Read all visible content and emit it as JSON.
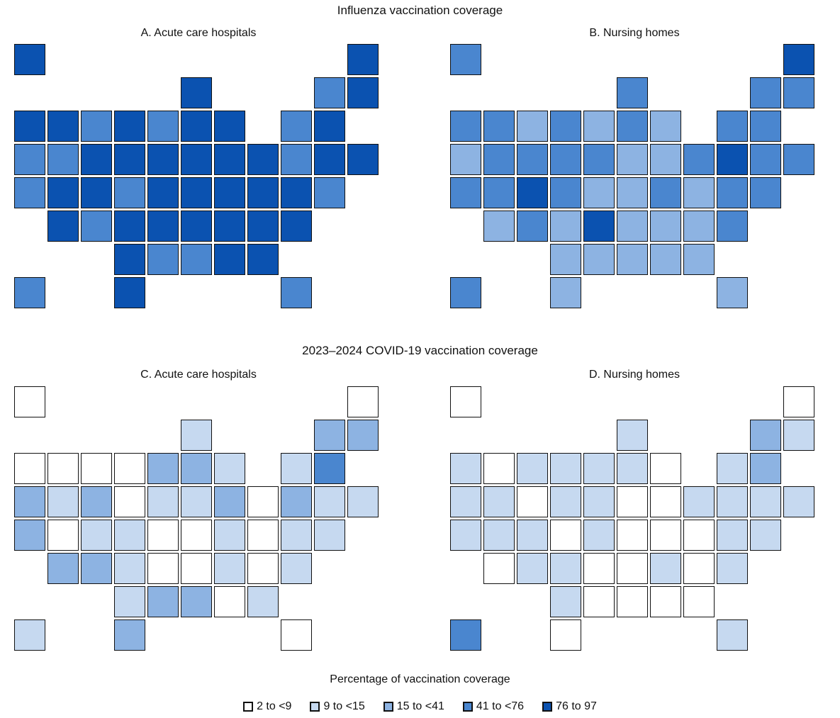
{
  "sections": [
    {
      "title": "Influenza vaccination coverage"
    },
    {
      "title": "2023–2024 COVID-19 vaccination coverage"
    }
  ],
  "legend": {
    "title": "Percentage of vaccination coverage",
    "items": [
      {
        "label": "2 to <9",
        "color": "#ffffff"
      },
      {
        "label": "9 to <15",
        "color": "#c6d9f0"
      },
      {
        "label": "15 to <41",
        "color": "#8db3e2"
      },
      {
        "label": "41 to <76",
        "color": "#4a86cf"
      },
      {
        "label": "76 to 97",
        "color": "#0b52b0"
      }
    ]
  },
  "panels": [
    {
      "title": "A. Acute care hospitals",
      "states": {
        "WA": 4,
        "OR": 3,
        "CA": 3,
        "NV": 3,
        "ID": 4,
        "MT": 3,
        "WY": 4,
        "UT": 4,
        "AZ": 4,
        "CO": 4,
        "NM": 3,
        "ND": 4,
        "SD": 4,
        "NE": 3,
        "KS": 4,
        "OK": 4,
        "TX": 4,
        "MN": 3,
        "IA": 4,
        "MO": 4,
        "AR": 4,
        "LA": 3,
        "WI": 4,
        "IL": 4,
        "MI": 4,
        "IN": 4,
        "OH": 4,
        "KY": 4,
        "TN": 4,
        "MS": 3,
        "AL": 4,
        "GA": 4,
        "FL": 3,
        "SC": 4,
        "NC": 4,
        "VA": 4,
        "WV": 4,
        "PA": 4,
        "NY": 3,
        "VT": 3,
        "NH": 4,
        "ME": 4,
        "MA": 4,
        "CT": 4,
        "RI": 4,
        "NJ": 3,
        "DE": 3,
        "MD": 4,
        "DC": 4,
        "AK": 4,
        "HI": 3
      }
    },
    {
      "title": "B. Nursing homes",
      "states": {
        "WA": 3,
        "OR": 2,
        "CA": 3,
        "NV": 3,
        "ID": 3,
        "MT": 2,
        "WY": 3,
        "UT": 3,
        "AZ": 2,
        "CO": 4,
        "NM": 3,
        "ND": 3,
        "SD": 3,
        "NE": 3,
        "KS": 2,
        "OK": 2,
        "TX": 2,
        "MN": 2,
        "IA": 3,
        "MO": 2,
        "AR": 4,
        "LA": 2,
        "WI": 3,
        "IL": 3,
        "MI": 2,
        "IN": 2,
        "OH": 2,
        "KY": 2,
        "TN": 2,
        "MS": 2,
        "AL": 2,
        "GA": 2,
        "FL": 2,
        "SC": 2,
        "NC": 2,
        "VA": 2,
        "WV": 3,
        "PA": 3,
        "NY": 3,
        "VT": 3,
        "NH": 3,
        "ME": 4,
        "MA": 3,
        "CT": 3,
        "RI": 3,
        "NJ": 4,
        "DE": 3,
        "MD": 3,
        "DC": 3,
        "AK": 3,
        "HI": 3
      }
    },
    {
      "title": "C. Acute care hospitals",
      "states": {
        "WA": 0,
        "OR": 2,
        "CA": 2,
        "NV": 1,
        "ID": 0,
        "MT": 0,
        "WY": 2,
        "UT": 0,
        "AZ": 2,
        "CO": 1,
        "NM": 2,
        "ND": 0,
        "SD": 0,
        "NE": 1,
        "KS": 1,
        "OK": 1,
        "TX": 2,
        "MN": 2,
        "IA": 1,
        "MO": 0,
        "AR": 0,
        "LA": 2,
        "WI": 1,
        "IL": 2,
        "MI": 1,
        "IN": 1,
        "OH": 2,
        "KY": 0,
        "TN": 0,
        "MS": 2,
        "AL": 0,
        "GA": 1,
        "FL": 0,
        "SC": 0,
        "NC": 1,
        "VA": 0,
        "WV": 1,
        "PA": 0,
        "NY": 1,
        "VT": 2,
        "NH": 2,
        "ME": 0,
        "MA": 3,
        "CT": 1,
        "RI": 1,
        "NJ": 2,
        "DE": 1,
        "MD": 1,
        "DC": 1,
        "AK": 0,
        "HI": 1
      }
    },
    {
      "title": "D. Nursing homes",
      "states": {
        "WA": 1,
        "OR": 1,
        "CA": 1,
        "NV": 1,
        "ID": 0,
        "MT": 1,
        "WY": 0,
        "UT": 1,
        "AZ": 0,
        "CO": 1,
        "NM": 1,
        "ND": 1,
        "SD": 1,
        "NE": 0,
        "KS": 1,
        "OK": 1,
        "TX": 0,
        "MN": 1,
        "IA": 1,
        "MO": 1,
        "AR": 0,
        "LA": 0,
        "WI": 1,
        "IL": 1,
        "MI": 0,
        "IN": 0,
        "OH": 0,
        "KY": 0,
        "TN": 0,
        "MS": 0,
        "AL": 0,
        "GA": 0,
        "FL": 1,
        "SC": 0,
        "NC": 1,
        "VA": 0,
        "WV": 0,
        "PA": 1,
        "NY": 1,
        "VT": 2,
        "NH": 1,
        "ME": 0,
        "MA": 2,
        "CT": 1,
        "RI": 1,
        "NJ": 1,
        "DE": 1,
        "MD": 1,
        "DC": 1,
        "AK": 0,
        "HI": 3
      }
    }
  ]
}
